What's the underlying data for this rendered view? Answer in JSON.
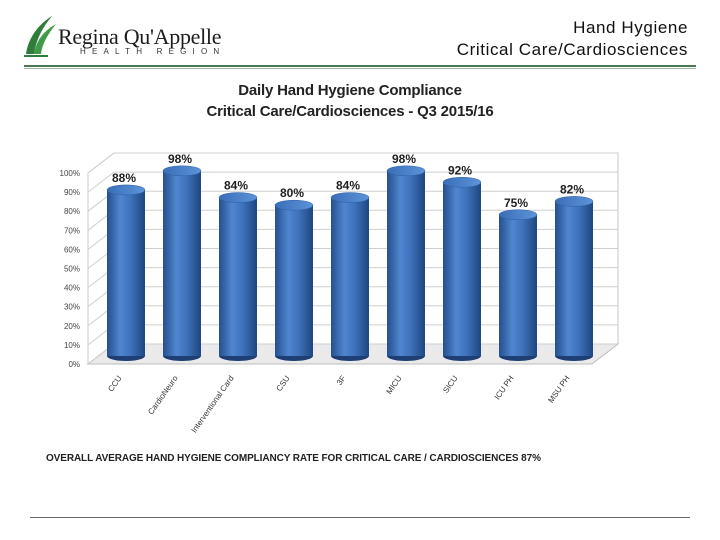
{
  "header": {
    "logo_name": "Regina Qu'Appelle",
    "logo_sub": "HEALTH REGION",
    "title_line1": "Hand Hygiene",
    "title_line2": "Critical Care/Cardiosciences"
  },
  "chart_data": {
    "type": "bar",
    "title": "Daily Hand Hygiene Compliance",
    "subtitle": "Critical Care/Cardiosciences - Q3 2015/16",
    "categories": [
      "CCU",
      "CardioNeuro",
      "Interventional Card",
      "CSU",
      "3F",
      "MICU",
      "SICU",
      "ICU PH",
      "MSU PH"
    ],
    "values": [
      88,
      98,
      84,
      80,
      84,
      98,
      92,
      75,
      82
    ],
    "value_labels": [
      "88%",
      "98%",
      "84%",
      "80%",
      "84%",
      "98%",
      "92%",
      "75%",
      "82%"
    ],
    "ylim": [
      0,
      100
    ],
    "yticks": [
      "0%",
      "10%",
      "20%",
      "30%",
      "40%",
      "50%",
      "60%",
      "70%",
      "80%",
      "90%",
      "100%"
    ],
    "grid": true,
    "bar_color": "#3b6fba",
    "xlabel": "",
    "ylabel": ""
  },
  "footer": {
    "text": "OVERALL AVERAGE HAND HYGIENE COMPLIANCY RATE FOR CRITICAL CARE / CARDIOSCIENCES 87%"
  }
}
